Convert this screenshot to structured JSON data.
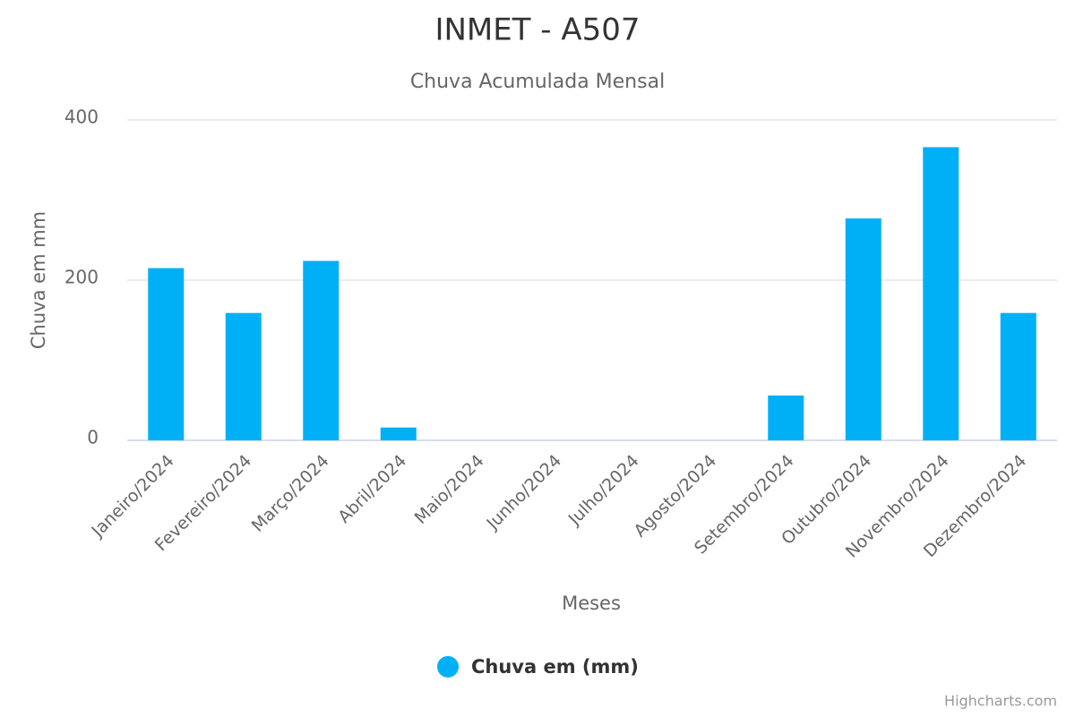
{
  "chart_data": {
    "type": "bar",
    "title": "INMET - A507",
    "subtitle": "Chuva Acumulada Mensal",
    "x_label": "Meses",
    "y_label": "Chuva em mm",
    "categories": [
      "Janeiro/2024",
      "Fevereiro/2024",
      "Março/2024",
      "Abril/2024",
      "Maio/2024",
      "Junho/2024",
      "Julho/2024",
      "Agosto/2024",
      "Setembro/2024",
      "Outubro/2024",
      "Novembro/2024",
      "Dezembro/2024"
    ],
    "series": [
      {
        "name": "Chuva em (mm)",
        "color": "#00b0f6",
        "values": [
          215,
          159,
          224,
          16,
          0,
          0,
          0,
          0,
          56,
          277,
          366,
          159
        ]
      }
    ],
    "ylim": [
      0,
      400
    ],
    "yticks": [
      0,
      200,
      400
    ],
    "grid": true,
    "legend": "bottom",
    "credits": "Highcharts.com"
  }
}
